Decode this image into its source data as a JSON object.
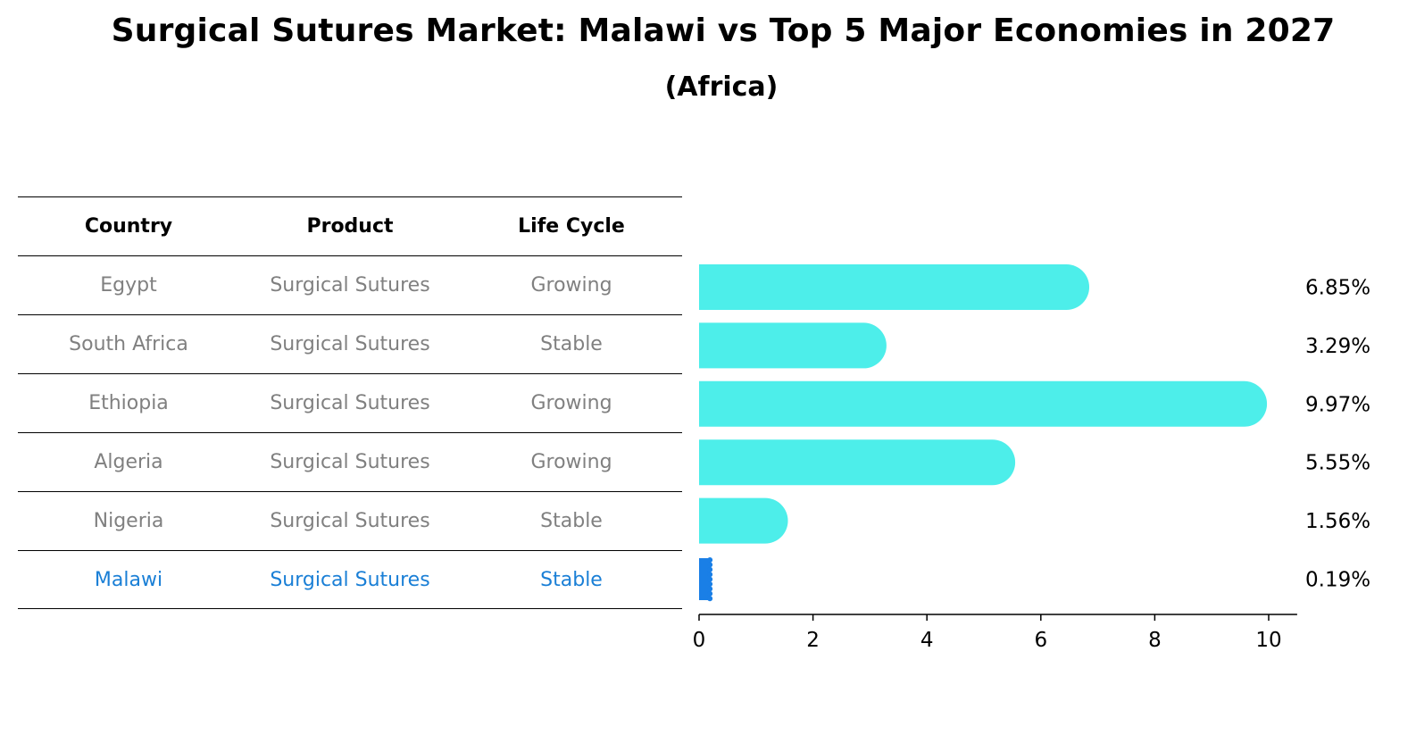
{
  "chart_data": {
    "type": "bar",
    "orientation": "horizontal",
    "title": "Surgical Sutures Market: Malawi vs Top 5 Major Economies in 2027",
    "subtitle": "(Africa)",
    "categories": [
      "Egypt",
      "South Africa",
      "Ethiopia",
      "Algeria",
      "Nigeria",
      "Malawi"
    ],
    "values": [
      6.85,
      3.29,
      9.97,
      5.55,
      1.56,
      0.19
    ],
    "value_labels": [
      "6.85%",
      "3.29%",
      "9.97%",
      "5.55%",
      "1.56%",
      "0.19%"
    ],
    "xlim": [
      0,
      10.5
    ],
    "xticks": [
      0,
      2,
      4,
      6,
      8,
      10
    ],
    "xtick_labels": [
      "0",
      "2",
      "4",
      "6",
      "8",
      "10"
    ],
    "xlabel": "",
    "ylabel": "",
    "grid": false,
    "colors": {
      "bar": "#4deeea",
      "highlight": "#1a7fe6"
    }
  },
  "table": {
    "headers": [
      "Country",
      "Product",
      "Life Cycle"
    ],
    "rows": [
      [
        "Egypt",
        "Surgical Sutures",
        "Growing"
      ],
      [
        "South Africa",
        "Surgical Sutures",
        "Stable"
      ],
      [
        "Ethiopia",
        "Surgical Sutures",
        "Growing"
      ],
      [
        "Algeria",
        "Surgical Sutures",
        "Growing"
      ],
      [
        "Nigeria",
        "Surgical Sutures",
        "Stable"
      ],
      [
        "Malawi",
        "Surgical Sutures",
        "Stable"
      ]
    ],
    "highlight_row": 5,
    "colors": {
      "text": "#808080",
      "highlight": "#1a7fd6"
    }
  }
}
